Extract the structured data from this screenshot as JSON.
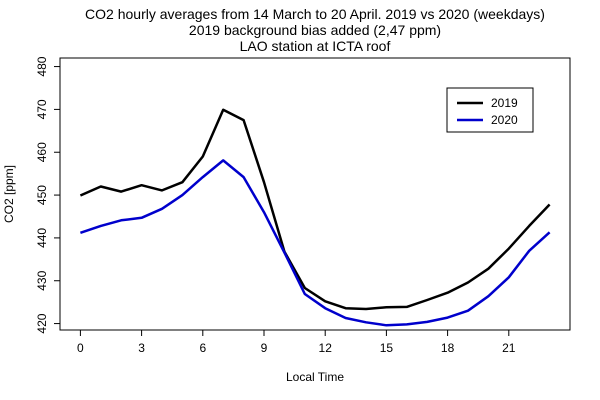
{
  "chart_data": {
    "type": "line",
    "title_lines": [
      "CO2 hourly averages from 14 March to 20 April. 2019 vs 2020 (weekdays)",
      "2019 background bias added (2,47 ppm)",
      "LAO station at ICTA roof"
    ],
    "xlabel": "Local Time",
    "ylabel": "CO2 [ppm]",
    "xlim": [
      -1,
      24
    ],
    "ylim": [
      418.5,
      482
    ],
    "xticks": [
      0,
      3,
      6,
      9,
      12,
      15,
      18,
      21
    ],
    "yticks": [
      420,
      430,
      440,
      450,
      460,
      470,
      480
    ],
    "grid": false,
    "legend_position": "top-right",
    "x": [
      0,
      1,
      2,
      3,
      4,
      5,
      6,
      7,
      8,
      9,
      10,
      11,
      12,
      13,
      14,
      15,
      16,
      17,
      18,
      19,
      20,
      21,
      22,
      23
    ],
    "series": [
      {
        "name": "2019",
        "color": "#000000",
        "values": [
          449.9,
          452.0,
          450.8,
          452.3,
          451.1,
          453.0,
          459.0,
          469.9,
          467.5,
          453.0,
          436.8,
          428.3,
          425.2,
          423.6,
          423.4,
          423.8,
          423.9,
          425.5,
          427.2,
          429.6,
          432.8,
          437.5,
          442.8,
          447.8
        ]
      },
      {
        "name": "2020",
        "color": "#0000cc",
        "values": [
          441.2,
          442.8,
          444.1,
          444.7,
          446.8,
          450.0,
          454.2,
          458.1,
          454.2,
          446.0,
          436.6,
          426.9,
          423.6,
          421.3,
          420.3,
          419.6,
          419.8,
          420.4,
          421.4,
          423.0,
          426.4,
          430.8,
          437.0,
          441.3
        ]
      }
    ]
  }
}
